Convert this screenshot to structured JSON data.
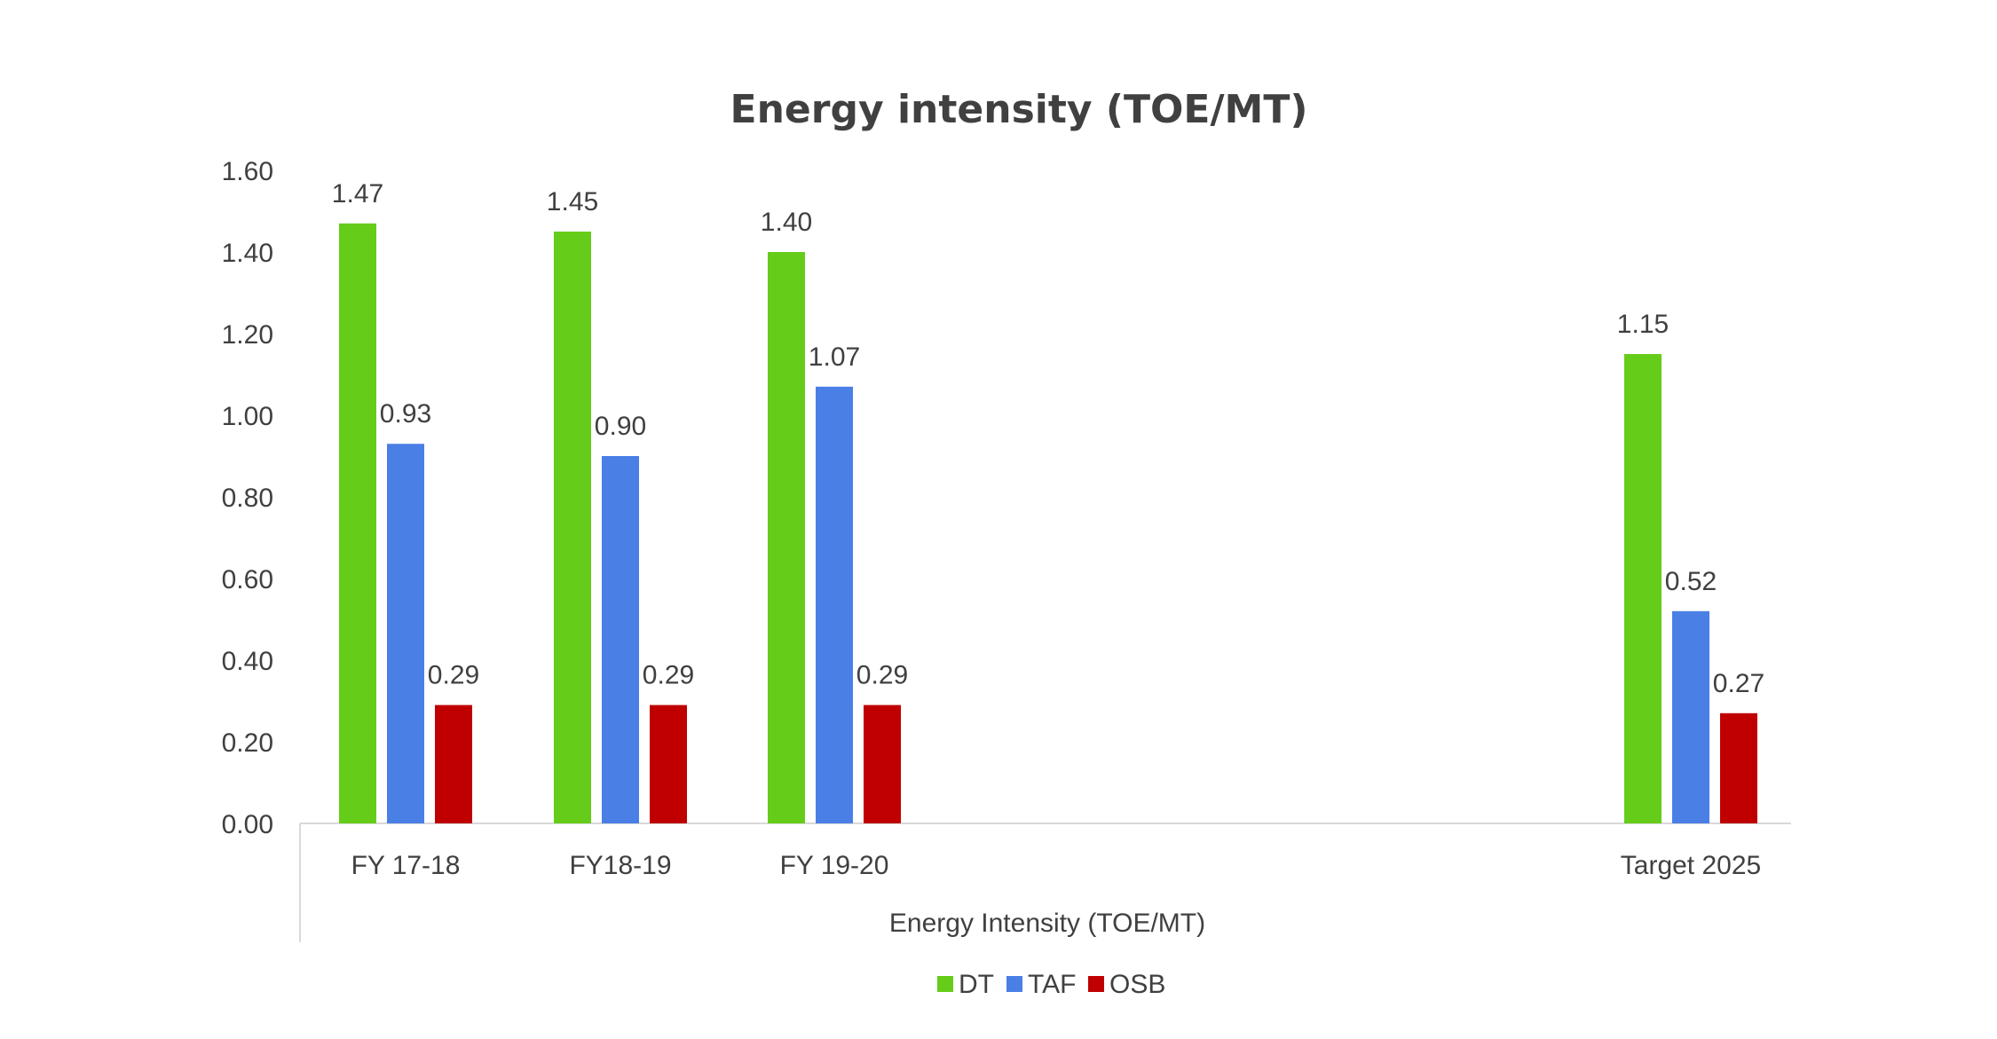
{
  "chart_data": {
    "type": "bar",
    "title": "Energy intensity  (TOE/MT)",
    "xlabel": "Energy Intensity  (TOE/MT)",
    "ylabel": "",
    "ylim": [
      0,
      1.6
    ],
    "yticks": [
      "0.00",
      "0.20",
      "0.40",
      "0.60",
      "0.80",
      "1.00",
      "1.20",
      "1.40",
      "1.60"
    ],
    "categories": [
      "FY 17-18",
      "FY18-19",
      "FY 19-20",
      "Target 2025"
    ],
    "series": [
      {
        "name": "DT",
        "color": "#66cc1a",
        "values": [
          1.47,
          1.45,
          1.4,
          1.15
        ],
        "labels": [
          "1.47",
          "1.45",
          "1.40",
          "1.15"
        ]
      },
      {
        "name": "TAF",
        "color": "#4a7fe6",
        "values": [
          0.93,
          0.9,
          1.07,
          0.52
        ],
        "labels": [
          "0.93",
          "0.90",
          "1.07",
          "0.52"
        ]
      },
      {
        "name": "OSB",
        "color": "#c00000",
        "values": [
          0.29,
          0.29,
          0.29,
          0.27
        ],
        "labels": [
          "0.29",
          "0.29",
          "0.29",
          "0.27"
        ]
      }
    ],
    "grid": false,
    "legend_position": "bottom"
  }
}
